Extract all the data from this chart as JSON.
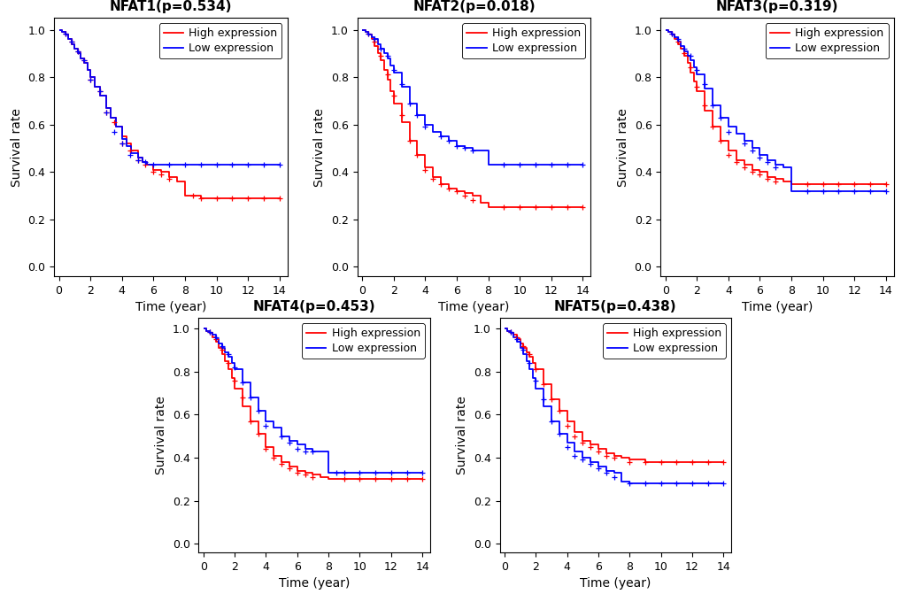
{
  "panels": [
    {
      "title": "NFAT1(p=0.534)",
      "high": {
        "times": [
          0,
          0.2,
          0.4,
          0.6,
          0.8,
          1.0,
          1.2,
          1.4,
          1.6,
          1.8,
          2.0,
          2.3,
          2.6,
          3.0,
          3.3,
          3.6,
          4.0,
          4.3,
          4.6,
          5.0,
          5.3,
          5.6,
          6.0,
          6.5,
          7.0,
          7.5,
          8.0,
          8.5,
          9.0,
          10.0,
          11.0,
          12.0,
          13.0,
          14.0
        ],
        "surv": [
          1.0,
          0.99,
          0.98,
          0.96,
          0.94,
          0.92,
          0.9,
          0.88,
          0.86,
          0.83,
          0.8,
          0.76,
          0.72,
          0.67,
          0.63,
          0.59,
          0.55,
          0.52,
          0.49,
          0.46,
          0.44,
          0.43,
          0.41,
          0.4,
          0.38,
          0.36,
          0.3,
          0.3,
          0.29,
          0.29,
          0.29,
          0.29,
          0.29,
          0.29
        ],
        "censors": [
          0.4,
          0.8,
          1.2,
          1.6,
          2.0,
          2.6,
          3.0,
          3.5,
          4.0,
          4.5,
          5.0,
          5.5,
          6.0,
          6.5,
          7.0,
          8.5,
          9.0,
          10.0,
          11.0,
          12.0,
          13.0,
          14.0
        ],
        "censors_surv": [
          0.985,
          0.95,
          0.91,
          0.87,
          0.79,
          0.74,
          0.65,
          0.61,
          0.52,
          0.49,
          0.45,
          0.43,
          0.4,
          0.39,
          0.37,
          0.3,
          0.29,
          0.29,
          0.29,
          0.29,
          0.29,
          0.29
        ]
      },
      "low": {
        "times": [
          0,
          0.2,
          0.4,
          0.6,
          0.8,
          1.0,
          1.2,
          1.4,
          1.6,
          1.8,
          2.0,
          2.3,
          2.6,
          3.0,
          3.3,
          3.6,
          4.0,
          4.3,
          4.6,
          5.0,
          5.3,
          5.6,
          6.0,
          7.0,
          8.0,
          9.0,
          10.0,
          11.0,
          12.0,
          13.0,
          14.0
        ],
        "surv": [
          1.0,
          0.99,
          0.98,
          0.96,
          0.94,
          0.92,
          0.9,
          0.88,
          0.86,
          0.83,
          0.8,
          0.76,
          0.72,
          0.67,
          0.63,
          0.59,
          0.54,
          0.51,
          0.48,
          0.46,
          0.44,
          0.43,
          0.43,
          0.43,
          0.43,
          0.43,
          0.43,
          0.43,
          0.43,
          0.43,
          0.43
        ],
        "censors": [
          0.4,
          0.8,
          1.2,
          1.6,
          2.0,
          2.6,
          3.0,
          3.5,
          4.0,
          4.5,
          5.0,
          5.5,
          6.0,
          7.0,
          8.0,
          9.0,
          10.0,
          11.0,
          12.0,
          13.0,
          14.0
        ],
        "censors_surv": [
          0.985,
          0.95,
          0.91,
          0.87,
          0.79,
          0.74,
          0.65,
          0.57,
          0.52,
          0.47,
          0.45,
          0.44,
          0.43,
          0.43,
          0.43,
          0.43,
          0.43,
          0.43,
          0.43,
          0.43,
          0.43
        ]
      }
    },
    {
      "title": "NFAT2(p=0.018)",
      "high": {
        "times": [
          0,
          0.2,
          0.4,
          0.6,
          0.8,
          1.0,
          1.2,
          1.4,
          1.6,
          1.8,
          2.0,
          2.5,
          3.0,
          3.5,
          4.0,
          4.5,
          5.0,
          5.5,
          6.0,
          6.5,
          7.0,
          7.5,
          8.0,
          9.0,
          10.0,
          11.0,
          12.0,
          13.0,
          14.0
        ],
        "surv": [
          1.0,
          0.99,
          0.98,
          0.96,
          0.93,
          0.9,
          0.87,
          0.83,
          0.79,
          0.74,
          0.69,
          0.61,
          0.53,
          0.47,
          0.42,
          0.38,
          0.35,
          0.33,
          0.32,
          0.31,
          0.3,
          0.27,
          0.25,
          0.25,
          0.25,
          0.25,
          0.25,
          0.25,
          0.25
        ],
        "censors": [
          0.4,
          0.8,
          1.2,
          1.6,
          2.0,
          2.5,
          3.0,
          3.5,
          4.0,
          4.5,
          5.0,
          5.5,
          6.0,
          6.5,
          7.0,
          9.0,
          10.0,
          11.0,
          12.0,
          13.0,
          14.0
        ],
        "censors_surv": [
          0.985,
          0.95,
          0.89,
          0.81,
          0.72,
          0.64,
          0.53,
          0.47,
          0.41,
          0.37,
          0.35,
          0.33,
          0.32,
          0.3,
          0.28,
          0.25,
          0.25,
          0.25,
          0.25,
          0.25,
          0.25
        ]
      },
      "low": {
        "times": [
          0,
          0.2,
          0.4,
          0.6,
          0.8,
          1.0,
          1.2,
          1.4,
          1.6,
          1.8,
          2.0,
          2.5,
          3.0,
          3.5,
          4.0,
          4.5,
          5.0,
          5.5,
          6.0,
          6.5,
          7.0,
          7.5,
          8.0,
          9.0,
          10.0,
          11.0,
          12.0,
          13.0,
          14.0
        ],
        "surv": [
          1.0,
          0.99,
          0.98,
          0.97,
          0.96,
          0.94,
          0.92,
          0.9,
          0.88,
          0.85,
          0.82,
          0.76,
          0.69,
          0.64,
          0.6,
          0.57,
          0.55,
          0.53,
          0.51,
          0.5,
          0.49,
          0.49,
          0.43,
          0.43,
          0.43,
          0.43,
          0.43,
          0.43,
          0.43
        ],
        "censors": [
          0.4,
          0.8,
          1.2,
          1.6,
          2.0,
          2.5,
          3.0,
          3.5,
          4.0,
          5.0,
          5.5,
          6.0,
          6.5,
          7.0,
          9.0,
          10.0,
          11.0,
          12.0,
          13.0,
          14.0
        ],
        "censors_surv": [
          0.985,
          0.96,
          0.92,
          0.89,
          0.83,
          0.77,
          0.69,
          0.64,
          0.59,
          0.55,
          0.53,
          0.51,
          0.5,
          0.49,
          0.43,
          0.43,
          0.43,
          0.43,
          0.43,
          0.43
        ]
      }
    },
    {
      "title": "NFAT3(p=0.319)",
      "high": {
        "times": [
          0,
          0.2,
          0.4,
          0.6,
          0.8,
          1.0,
          1.2,
          1.4,
          1.6,
          1.8,
          2.0,
          2.5,
          3.0,
          3.5,
          4.0,
          4.5,
          5.0,
          5.5,
          6.0,
          6.5,
          7.0,
          7.5,
          8.0,
          9.0,
          10.0,
          11.0,
          12.0,
          13.0,
          14.0
        ],
        "surv": [
          1.0,
          0.99,
          0.98,
          0.96,
          0.94,
          0.92,
          0.89,
          0.86,
          0.82,
          0.78,
          0.74,
          0.66,
          0.59,
          0.53,
          0.49,
          0.45,
          0.43,
          0.41,
          0.4,
          0.38,
          0.37,
          0.36,
          0.35,
          0.35,
          0.35,
          0.35,
          0.35,
          0.35,
          0.35
        ],
        "censors": [
          0.4,
          0.8,
          1.2,
          1.6,
          2.0,
          2.5,
          3.0,
          3.5,
          4.0,
          4.5,
          5.0,
          5.5,
          6.0,
          6.5,
          7.0,
          9.0,
          10.0,
          11.0,
          12.0,
          13.0,
          14.0
        ],
        "censors_surv": [
          0.985,
          0.95,
          0.9,
          0.84,
          0.76,
          0.68,
          0.59,
          0.53,
          0.47,
          0.44,
          0.42,
          0.4,
          0.39,
          0.37,
          0.36,
          0.35,
          0.35,
          0.35,
          0.35,
          0.35,
          0.35
        ]
      },
      "low": {
        "times": [
          0,
          0.2,
          0.4,
          0.6,
          0.8,
          1.0,
          1.2,
          1.4,
          1.6,
          1.8,
          2.0,
          2.5,
          3.0,
          3.5,
          4.0,
          4.5,
          5.0,
          5.5,
          6.0,
          6.5,
          7.0,
          7.5,
          8.0,
          9.0,
          10.0,
          11.0,
          12.0,
          13.0,
          14.0
        ],
        "surv": [
          1.0,
          0.99,
          0.98,
          0.97,
          0.95,
          0.93,
          0.91,
          0.89,
          0.87,
          0.84,
          0.81,
          0.75,
          0.68,
          0.63,
          0.59,
          0.56,
          0.53,
          0.5,
          0.47,
          0.45,
          0.43,
          0.42,
          0.32,
          0.32,
          0.32,
          0.32,
          0.32,
          0.32,
          0.32
        ],
        "censors": [
          0.4,
          0.8,
          1.2,
          1.6,
          2.0,
          2.5,
          3.0,
          3.5,
          4.0,
          5.0,
          5.5,
          6.0,
          6.5,
          7.0,
          9.0,
          10.0,
          11.0,
          12.0,
          13.0,
          14.0
        ],
        "censors_surv": [
          0.985,
          0.96,
          0.92,
          0.89,
          0.83,
          0.77,
          0.68,
          0.63,
          0.57,
          0.52,
          0.49,
          0.46,
          0.44,
          0.42,
          0.32,
          0.32,
          0.32,
          0.32,
          0.32,
          0.32
        ]
      }
    },
    {
      "title": "NFAT4(p=0.453)",
      "high": {
        "times": [
          0,
          0.2,
          0.4,
          0.6,
          0.8,
          1.0,
          1.2,
          1.4,
          1.6,
          1.8,
          2.0,
          2.5,
          3.0,
          3.5,
          4.0,
          4.5,
          5.0,
          5.5,
          6.0,
          6.5,
          7.0,
          7.5,
          8.0,
          9.0,
          10.0,
          11.0,
          12.0,
          13.0,
          14.0
        ],
        "surv": [
          1.0,
          0.99,
          0.98,
          0.96,
          0.94,
          0.91,
          0.88,
          0.85,
          0.81,
          0.77,
          0.72,
          0.64,
          0.57,
          0.51,
          0.45,
          0.41,
          0.38,
          0.36,
          0.34,
          0.33,
          0.32,
          0.31,
          0.3,
          0.3,
          0.3,
          0.3,
          0.3,
          0.3,
          0.3
        ],
        "censors": [
          0.4,
          0.8,
          1.2,
          1.6,
          2.0,
          2.5,
          3.0,
          3.5,
          4.0,
          4.5,
          5.0,
          5.5,
          6.0,
          6.5,
          7.0,
          9.0,
          10.0,
          11.0,
          12.0,
          13.0,
          14.0
        ],
        "censors_surv": [
          0.985,
          0.95,
          0.9,
          0.84,
          0.76,
          0.68,
          0.57,
          0.51,
          0.44,
          0.4,
          0.37,
          0.35,
          0.33,
          0.32,
          0.31,
          0.3,
          0.3,
          0.3,
          0.3,
          0.3,
          0.3
        ]
      },
      "low": {
        "times": [
          0,
          0.2,
          0.4,
          0.6,
          0.8,
          1.0,
          1.2,
          1.4,
          1.6,
          1.8,
          2.0,
          2.5,
          3.0,
          3.5,
          4.0,
          4.5,
          5.0,
          5.5,
          6.0,
          6.5,
          7.0,
          7.5,
          8.0,
          9.0,
          10.0,
          11.0,
          12.0,
          13.0,
          14.0
        ],
        "surv": [
          1.0,
          0.99,
          0.98,
          0.97,
          0.95,
          0.93,
          0.91,
          0.89,
          0.87,
          0.84,
          0.81,
          0.75,
          0.68,
          0.62,
          0.57,
          0.54,
          0.5,
          0.48,
          0.46,
          0.44,
          0.43,
          0.43,
          0.33,
          0.33,
          0.33,
          0.33,
          0.33,
          0.33,
          0.33
        ],
        "censors": [
          0.4,
          0.8,
          1.2,
          1.6,
          2.0,
          2.5,
          3.0,
          3.5,
          4.0,
          5.0,
          5.5,
          6.0,
          6.5,
          7.0,
          8.5,
          9.0,
          10.0,
          11.0,
          12.0,
          13.0,
          14.0
        ],
        "censors_surv": [
          0.985,
          0.96,
          0.92,
          0.88,
          0.82,
          0.75,
          0.68,
          0.62,
          0.55,
          0.5,
          0.47,
          0.44,
          0.43,
          0.43,
          0.33,
          0.33,
          0.33,
          0.33,
          0.33,
          0.33,
          0.33
        ]
      }
    },
    {
      "title": "NFAT5(p=0.438)",
      "high": {
        "times": [
          0,
          0.2,
          0.4,
          0.6,
          0.8,
          1.0,
          1.2,
          1.4,
          1.6,
          1.8,
          2.0,
          2.5,
          3.0,
          3.5,
          4.0,
          4.5,
          5.0,
          5.5,
          6.0,
          6.5,
          7.0,
          7.5,
          8.0,
          9.0,
          10.0,
          11.0,
          12.0,
          13.0,
          14.0
        ],
        "surv": [
          1.0,
          0.99,
          0.98,
          0.97,
          0.95,
          0.93,
          0.91,
          0.89,
          0.87,
          0.84,
          0.81,
          0.74,
          0.67,
          0.62,
          0.57,
          0.52,
          0.48,
          0.46,
          0.44,
          0.42,
          0.41,
          0.4,
          0.39,
          0.38,
          0.38,
          0.38,
          0.38,
          0.38,
          0.38
        ],
        "censors": [
          0.4,
          0.8,
          1.2,
          1.6,
          2.0,
          2.5,
          3.0,
          3.5,
          4.0,
          4.5,
          5.0,
          5.5,
          6.0,
          6.5,
          7.0,
          8.0,
          9.0,
          10.0,
          11.0,
          12.0,
          13.0,
          14.0
        ],
        "censors_surv": [
          0.985,
          0.96,
          0.92,
          0.88,
          0.81,
          0.74,
          0.67,
          0.62,
          0.55,
          0.5,
          0.47,
          0.45,
          0.43,
          0.41,
          0.4,
          0.38,
          0.38,
          0.38,
          0.38,
          0.38,
          0.38,
          0.38
        ]
      },
      "low": {
        "times": [
          0,
          0.2,
          0.4,
          0.6,
          0.8,
          1.0,
          1.2,
          1.4,
          1.6,
          1.8,
          2.0,
          2.5,
          3.0,
          3.5,
          4.0,
          4.5,
          5.0,
          5.5,
          6.0,
          6.5,
          7.0,
          7.5,
          8.0,
          9.0,
          10.0,
          11.0,
          12.0,
          13.0,
          14.0
        ],
        "surv": [
          1.0,
          0.99,
          0.98,
          0.96,
          0.94,
          0.91,
          0.88,
          0.85,
          0.81,
          0.77,
          0.72,
          0.64,
          0.57,
          0.51,
          0.47,
          0.43,
          0.4,
          0.38,
          0.36,
          0.34,
          0.33,
          0.29,
          0.28,
          0.28,
          0.28,
          0.28,
          0.28,
          0.28,
          0.28
        ],
        "censors": [
          0.4,
          0.8,
          1.2,
          1.6,
          2.0,
          2.5,
          3.0,
          3.5,
          4.0,
          4.5,
          5.0,
          5.5,
          6.0,
          6.5,
          7.0,
          8.0,
          9.0,
          10.0,
          11.0,
          12.0,
          13.0,
          14.0
        ],
        "censors_surv": [
          0.985,
          0.95,
          0.9,
          0.84,
          0.76,
          0.67,
          0.57,
          0.51,
          0.45,
          0.41,
          0.39,
          0.37,
          0.35,
          0.33,
          0.31,
          0.28,
          0.28,
          0.28,
          0.28,
          0.28,
          0.28,
          0.28
        ]
      }
    }
  ],
  "high_color": "#FF0000",
  "low_color": "#0000FF",
  "bg_color": "#FFFFFF",
  "plot_bg_color": "#FFFFFF",
  "xlabel": "Time (year)",
  "ylabel": "Survival rate",
  "xlim": [
    -0.3,
    14.5
  ],
  "ylim": [
    -0.04,
    1.05
  ],
  "xticks": [
    0,
    2,
    4,
    6,
    8,
    10,
    12,
    14
  ],
  "yticks": [
    0.0,
    0.2,
    0.4,
    0.6,
    0.8,
    1.0
  ],
  "legend_labels": [
    "High expression",
    "Low expression"
  ],
  "title_fontsize": 11,
  "label_fontsize": 10,
  "tick_fontsize": 9,
  "legend_fontsize": 9,
  "line_width": 1.3,
  "censor_marker_size": 5
}
